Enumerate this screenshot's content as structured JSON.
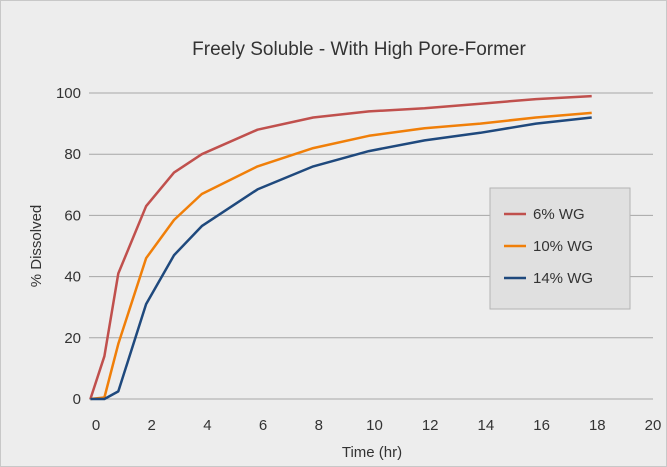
{
  "chart_data": {
    "type": "line",
    "title": "Freely Soluble - With High Pore-Former",
    "xlabel": "Time (hr)",
    "ylabel": "% Dissolved",
    "xlim": [
      0,
      20
    ],
    "ylim": [
      0,
      100
    ],
    "xticks": [
      0,
      2,
      4,
      6,
      8,
      10,
      12,
      14,
      16,
      18,
      20
    ],
    "yticks": [
      0,
      20,
      40,
      60,
      80,
      100
    ],
    "grid": "horizontal",
    "legend_position": "right",
    "series": [
      {
        "name": "6% WG",
        "color": "#c0504d",
        "x": [
          -0.2,
          0.3,
          0.8,
          1.8,
          2.8,
          3.8,
          5.8,
          7.8,
          9.8,
          11.8,
          13.8,
          15.8,
          17.8
        ],
        "y": [
          0,
          14,
          41,
          63,
          74,
          80,
          88,
          92,
          94,
          95,
          96.5,
          98,
          99
        ]
      },
      {
        "name": "10% WG",
        "color": "#f07f09",
        "x": [
          -0.2,
          0.3,
          0.8,
          1.8,
          2.8,
          3.8,
          5.8,
          7.8,
          9.8,
          11.8,
          13.8,
          15.8,
          17.8
        ],
        "y": [
          0,
          0.5,
          18,
          46,
          58.5,
          67,
          76,
          82,
          86,
          88.5,
          90,
          92,
          93.5
        ]
      },
      {
        "name": "14% WG",
        "color": "#1f497d",
        "x": [
          -0.2,
          0.3,
          0.8,
          1.8,
          2.8,
          3.8,
          5.8,
          7.8,
          9.8,
          11.8,
          13.8,
          15.8,
          17.8
        ],
        "y": [
          0,
          0,
          2.5,
          31,
          47,
          56.5,
          68.5,
          76,
          81,
          84.5,
          87,
          90,
          92
        ]
      }
    ]
  }
}
